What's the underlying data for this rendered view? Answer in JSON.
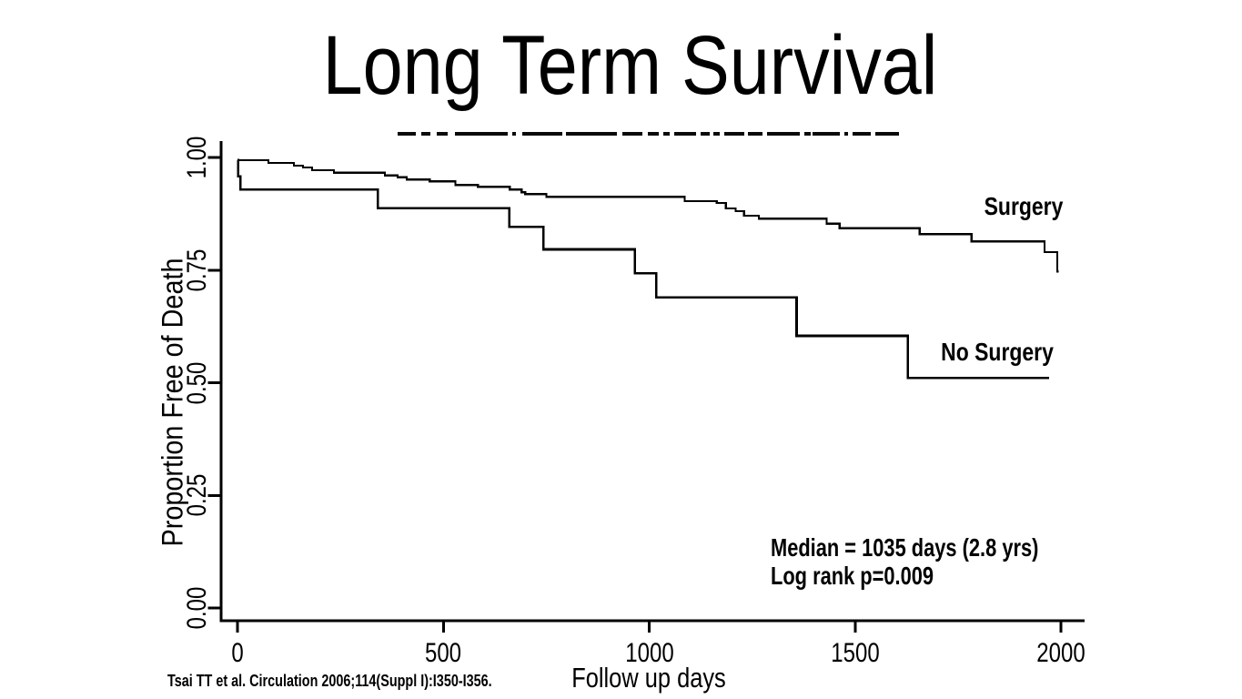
{
  "slide": {
    "title": "Long Term Survival",
    "citation": "Tsai TT et al. Circulation 2006;114(Suppl I):I350-I356."
  },
  "chart_data": {
    "type": "line",
    "variant": "kaplan_meier_step",
    "title": "Long Term Survival",
    "xlabel": "Follow up days",
    "ylabel": "Proportion Free of Death",
    "xlim": [
      0,
      2000
    ],
    "ylim": [
      0.0,
      1.0
    ],
    "x_ticks": [
      0,
      500,
      1000,
      1500,
      2000
    ],
    "x_tick_labels": [
      "0",
      "500",
      "1000",
      "1500",
      "2000"
    ],
    "y_ticks": [
      0.0,
      0.25,
      0.5,
      0.75,
      1.0
    ],
    "y_tick_labels": [
      "0.00",
      "0.25",
      "0.50",
      "0.75",
      "1.00"
    ],
    "grid": false,
    "legend_position": "inline-curve-labels",
    "line_color": "#000000",
    "series": [
      {
        "name": "Surgery",
        "end_day": 1995,
        "points": [
          [
            0,
            0.994
          ],
          [
            75,
            0.988
          ],
          [
            137,
            0.982
          ],
          [
            159,
            0.978
          ],
          [
            181,
            0.972
          ],
          [
            234,
            0.966
          ],
          [
            358,
            0.96
          ],
          [
            389,
            0.956
          ],
          [
            411,
            0.951
          ],
          [
            467,
            0.947
          ],
          [
            529,
            0.939
          ],
          [
            584,
            0.935
          ],
          [
            661,
            0.929
          ],
          [
            690,
            0.923
          ],
          [
            699,
            0.919
          ],
          [
            750,
            0.913
          ],
          [
            1086,
            0.903
          ],
          [
            1164,
            0.899
          ],
          [
            1186,
            0.887
          ],
          [
            1210,
            0.881
          ],
          [
            1230,
            0.871
          ],
          [
            1266,
            0.864
          ],
          [
            1431,
            0.853
          ],
          [
            1462,
            0.843
          ],
          [
            1657,
            0.83
          ],
          [
            1783,
            0.814
          ],
          [
            1960,
            0.79
          ],
          [
            1991,
            0.747
          ]
        ]
      },
      {
        "name": "No Surgery",
        "end_day": 1971,
        "points": [
          [
            0,
            0.994
          ],
          [
            2,
            0.958
          ],
          [
            7,
            0.929
          ],
          [
            341,
            0.887
          ],
          [
            660,
            0.846
          ],
          [
            743,
            0.796
          ],
          [
            965,
            0.743
          ],
          [
            1017,
            0.689
          ],
          [
            1358,
            0.604
          ],
          [
            1628,
            0.511
          ]
        ]
      }
    ],
    "annotations": {
      "median": "Median = 1035 days (2.8 yrs)",
      "log_rank": "Log rank p=0.009"
    }
  },
  "decor": {
    "clipped_text_segments": [
      [
        437,
        20
      ],
      [
        463,
        10
      ],
      [
        480,
        12
      ],
      [
        500,
        58
      ],
      [
        563,
        4
      ],
      [
        574,
        44
      ],
      [
        622,
        56
      ],
      [
        684,
        22
      ],
      [
        712,
        12
      ],
      [
        729,
        7
      ],
      [
        741,
        24
      ],
      [
        770,
        10
      ],
      [
        784,
        7
      ],
      [
        796,
        22
      ],
      [
        822,
        16
      ],
      [
        843,
        36
      ],
      [
        884,
        7
      ],
      [
        893,
        30
      ],
      [
        928,
        4
      ],
      [
        937,
        20
      ],
      [
        962,
        26
      ]
    ]
  }
}
